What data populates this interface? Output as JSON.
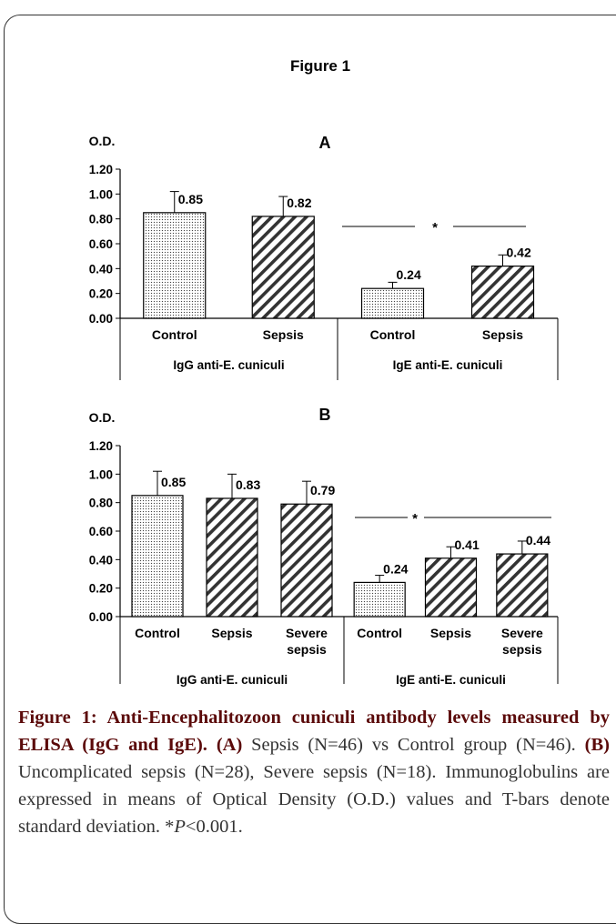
{
  "figure_label": "Figure 1",
  "chart_data": [
    {
      "type": "bar",
      "panel": "A",
      "ylabel": "O.D.",
      "ylim": [
        0,
        1.2
      ],
      "yticks": [
        "0.00",
        "0.20",
        "0.40",
        "0.60",
        "0.80",
        "1.00",
        "1.20"
      ],
      "grid": false,
      "groups": [
        {
          "label": "IgG anti-E. cuniculi",
          "bars": [
            {
              "category": [
                "Control"
              ],
              "value": 0.85,
              "sd": 0.17,
              "value_label": "0.85",
              "pattern": "dots"
            },
            {
              "category": [
                "Sepsis"
              ],
              "value": 0.82,
              "sd": 0.16,
              "value_label": "0.82",
              "pattern": "hatch"
            }
          ]
        },
        {
          "label": "IgE  anti-E. cuniculi",
          "bars": [
            {
              "category": [
                "Control"
              ],
              "value": 0.24,
              "sd": 0.05,
              "value_label": "0.24",
              "pattern": "dots"
            },
            {
              "category": [
                "Sepsis"
              ],
              "value": 0.42,
              "sd": 0.09,
              "value_label": "0.42",
              "pattern": "hatch"
            }
          ]
        }
      ],
      "significance": "*"
    },
    {
      "type": "bar",
      "panel": "B",
      "ylabel": "O.D.",
      "ylim": [
        0,
        1.2
      ],
      "yticks": [
        "0.00",
        "0.20",
        "0.40",
        "0.60",
        "0.80",
        "1.00",
        "1.20"
      ],
      "grid": false,
      "groups": [
        {
          "label": "IgG anti-E. cuniculi",
          "bars": [
            {
              "category": [
                "Control"
              ],
              "value": 0.85,
              "sd": 0.17,
              "value_label": "0.85",
              "pattern": "dots"
            },
            {
              "category": [
                "Sepsis"
              ],
              "value": 0.83,
              "sd": 0.17,
              "value_label": "0.83",
              "pattern": "hatch"
            },
            {
              "category": [
                "Severe",
                "sepsis"
              ],
              "value": 0.79,
              "sd": 0.16,
              "value_label": "0.79",
              "pattern": "hatch"
            }
          ]
        },
        {
          "label": "IgE  anti-E. cuniculi",
          "bars": [
            {
              "category": [
                "Control"
              ],
              "value": 0.24,
              "sd": 0.05,
              "value_label": "0.24",
              "pattern": "dots"
            },
            {
              "category": [
                "Sepsis"
              ],
              "value": 0.41,
              "sd": 0.08,
              "value_label": "0.41",
              "pattern": "hatch"
            },
            {
              "category": [
                "Severe",
                "sepsis"
              ],
              "value": 0.44,
              "sd": 0.09,
              "value_label": "0.44",
              "pattern": "hatch"
            }
          ]
        }
      ],
      "significance": "*"
    }
  ],
  "caption": {
    "title": "Figure 1: Anti-Encephalitozoon cuniculi antibody levels measured by ELISA (IgG and IgE).",
    "a_label": "(A)",
    "a_text": "Sepsis (N=46) vs Control group (N=46).",
    "b_label": "(B)",
    "b_text": "Uncomplicated sepsis (N=28), Severe sepsis (N=18). Immunoglobulins are expressed in means of Optical Density (O.D.) values and T-bars denote standard deviation. *",
    "p_italic": "P",
    "p_rest": "<0.001."
  }
}
